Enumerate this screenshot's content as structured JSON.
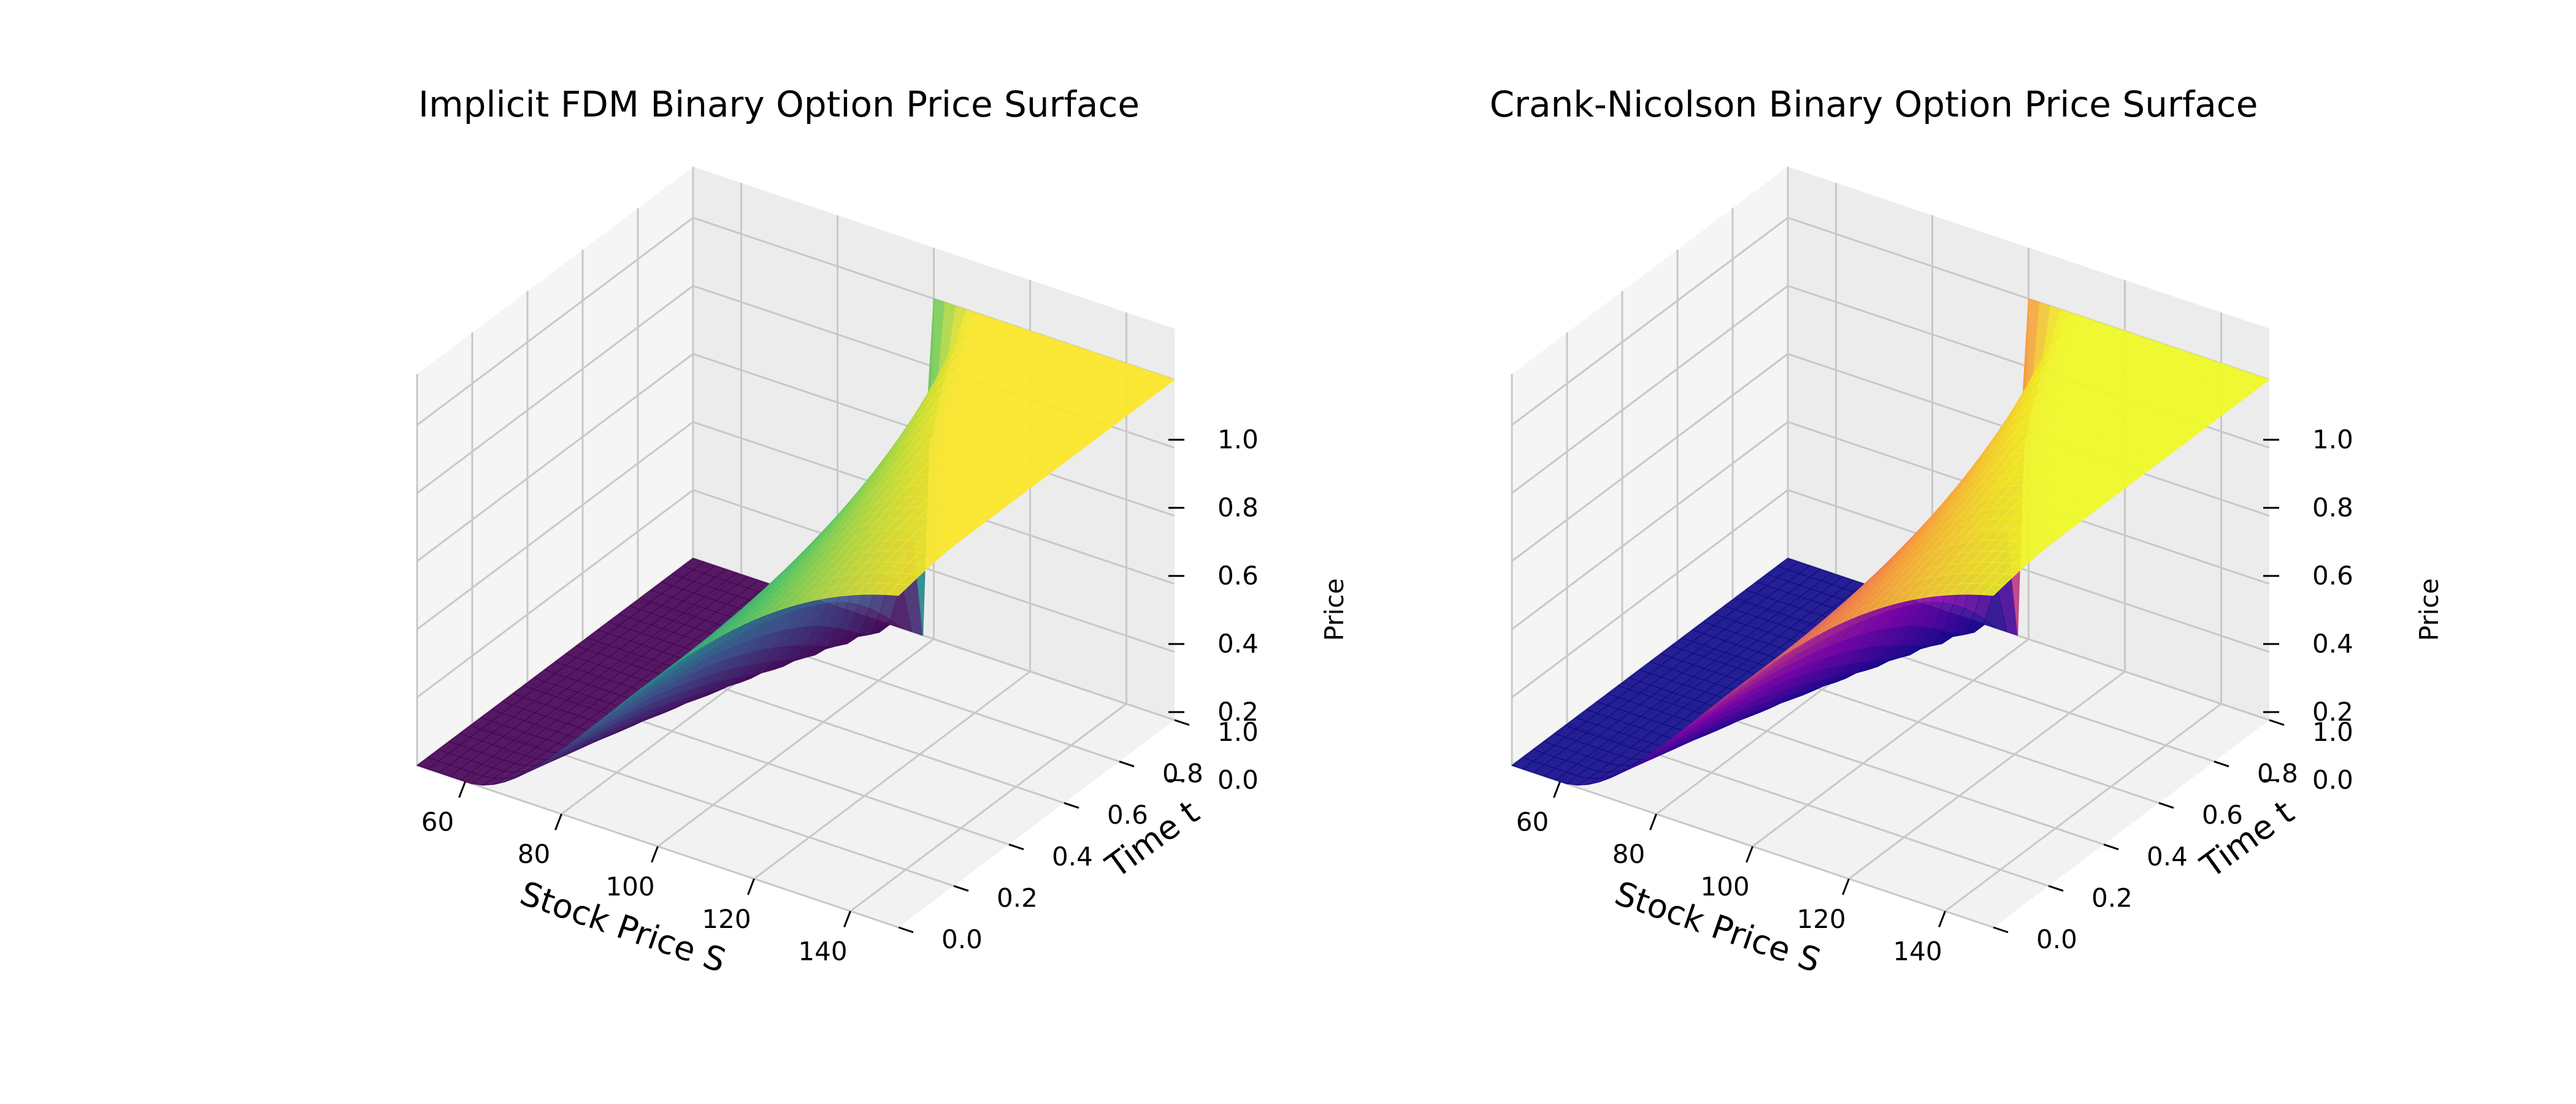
{
  "chart_data": [
    {
      "type": "surface",
      "title": "Implicit FDM Binary Option Price Surface",
      "xlabel": "Stock Price S",
      "ylabel": "Time t",
      "zlabel": "Price",
      "x_ticks": [
        "60",
        "80",
        "100",
        "120",
        "140"
      ],
      "y_ticks": [
        "0.0",
        "0.2",
        "0.4",
        "0.6",
        "0.8",
        "1.0"
      ],
      "z_ticks": [
        "0.0",
        "0.2",
        "0.4",
        "0.6",
        "0.8",
        "1.0"
      ],
      "xlim": [
        50,
        150
      ],
      "ylim": [
        0,
        1
      ],
      "zlim": [
        0,
        1
      ],
      "colormap": "viridis",
      "strike": 100,
      "grid": true,
      "surface_samples": {
        "S": [
          60,
          80,
          90,
          100,
          110,
          120,
          140
        ],
        "t": [
          0.0,
          0.5,
          1.0
        ],
        "price": [
          [
            0.0,
            0.0,
            0.0
          ],
          [
            0.01,
            0.0,
            0.0
          ],
          [
            0.12,
            0.05,
            0.0
          ],
          [
            0.45,
            0.47,
            0.5
          ],
          [
            0.78,
            0.9,
            1.0
          ],
          [
            0.93,
            0.99,
            1.0
          ],
          [
            1.0,
            1.0,
            1.0
          ]
        ]
      }
    },
    {
      "type": "surface",
      "title": "Crank-Nicolson Binary Option Price Surface",
      "xlabel": "Stock Price S",
      "ylabel": "Time t",
      "zlabel": "Price",
      "x_ticks": [
        "60",
        "80",
        "100",
        "120",
        "140"
      ],
      "y_ticks": [
        "0.0",
        "0.2",
        "0.4",
        "0.6",
        "0.8",
        "1.0"
      ],
      "z_ticks": [
        "0.0",
        "0.2",
        "0.4",
        "0.6",
        "0.8",
        "1.0"
      ],
      "xlim": [
        50,
        150
      ],
      "ylim": [
        0,
        1
      ],
      "zlim": [
        0,
        1
      ],
      "colormap": "plasma",
      "strike": 100,
      "grid": true,
      "surface_samples": {
        "S": [
          60,
          80,
          90,
          100,
          110,
          120,
          140
        ],
        "t": [
          0.0,
          0.5,
          1.0
        ],
        "price": [
          [
            0.0,
            0.0,
            0.0
          ],
          [
            0.01,
            0.0,
            0.0
          ],
          [
            0.12,
            0.05,
            0.0
          ],
          [
            0.45,
            0.47,
            0.5
          ],
          [
            0.78,
            0.9,
            1.0
          ],
          [
            0.93,
            0.99,
            1.0
          ],
          [
            1.0,
            1.0,
            1.0
          ]
        ]
      }
    }
  ]
}
